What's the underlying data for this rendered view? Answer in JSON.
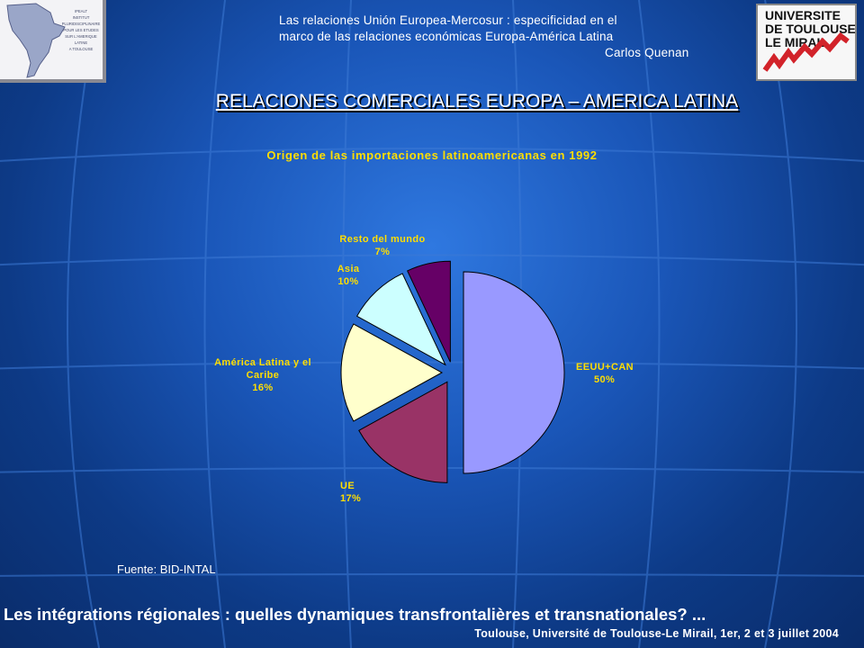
{
  "header": {
    "subtitle_line1": "Las relaciones Unión Europea-Mercosur : especificidad en el",
    "subtitle_line2": "marco de las relaciones económicas Europa-América Latina",
    "author": "Carlos Quenan"
  },
  "logo_left": {
    "lines": [
      "IPEALT",
      "INSTITUT",
      "PLURIDISCIPLINAIRE",
      "POUR LES ETUDES",
      "SUR L'AMERIQUE",
      "LATINE",
      "A TOULOUSE"
    ]
  },
  "logo_right": {
    "lines": [
      "UNIVERSITE",
      "DE TOULOUSE",
      "LE MIRAIL"
    ]
  },
  "slide_title": "RELACIONES COMERCIALES EUROPA – AMERICA LATINA",
  "chart_data": {
    "type": "pie",
    "title": "Origen de las importaciones latinoamericanas en 1992",
    "slices": [
      {
        "label": "EEUU+CAN",
        "percent_label": "50%",
        "value": 50,
        "color": "#9999ff"
      },
      {
        "label": "UE",
        "percent_label": "17%",
        "value": 17,
        "color": "#993366"
      },
      {
        "label": "América Latina y el Caribe",
        "percent_label": "16%",
        "value": 16,
        "color": "#ffffcc"
      },
      {
        "label": "Asia",
        "percent_label": "10%",
        "value": 10,
        "color": "#ccffff"
      },
      {
        "label": "Resto del mundo",
        "percent_label": "7%",
        "value": 7,
        "color": "#660066"
      }
    ]
  },
  "label_lines": {
    "america_line1": "América Latina y el",
    "america_line2": "Caribe"
  },
  "source": "Fuente: BID-INTAL",
  "footer": {
    "line1": "Les intégrations régionales : quelles dynamiques transfrontalières et transnationales? ...",
    "line2": "Toulouse, Université de Toulouse-Le Mirail, 1er, 2 et 3 juillet 2004"
  }
}
